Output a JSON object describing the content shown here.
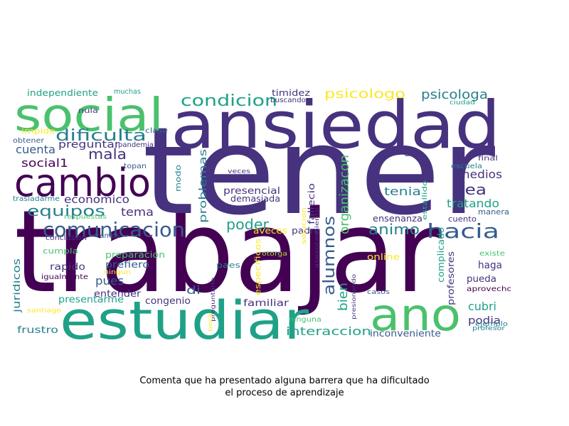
{
  "caption": {
    "line1": "Comenta que ha presentado alguna barrera que ha dificultado",
    "line2": "el proceso de aprendizaje"
  },
  "palette": {
    "dark_purple": "#440154",
    "indigo": "#46327e",
    "blue": "#365c8d",
    "teal_blue": "#277f8e",
    "teal": "#1fa187",
    "green": "#4ac16d",
    "lime": "#a0da39",
    "yellow": "#fde725"
  },
  "words": [
    {
      "text": "trabajar",
      "color": "dark_purple"
    },
    {
      "text": "tener",
      "color": "indigo"
    },
    {
      "text": "ansiedad",
      "color": "indigo"
    },
    {
      "text": "estudiar",
      "color": "teal"
    },
    {
      "text": "social",
      "color": "green"
    },
    {
      "text": "cambio",
      "color": "dark_purple"
    },
    {
      "text": "ano",
      "color": "green"
    },
    {
      "text": "comunicacion",
      "color": "blue"
    },
    {
      "text": "hacia",
      "color": "blue"
    },
    {
      "text": "condicion",
      "color": "teal"
    },
    {
      "text": "dificulta",
      "color": "teal_blue"
    },
    {
      "text": "alumnos",
      "color": "blue"
    },
    {
      "text": "equipos",
      "color": "teal_blue"
    },
    {
      "text": "mala",
      "color": "indigo"
    },
    {
      "text": "psicologo",
      "color": "yellow"
    },
    {
      "text": "psicologa",
      "color": "teal_blue"
    },
    {
      "text": "poder",
      "color": "teal"
    },
    {
      "text": "animo",
      "color": "teal_blue"
    },
    {
      "text": "tea",
      "color": "indigo"
    },
    {
      "text": "medios",
      "color": "indigo"
    },
    {
      "text": "social1",
      "color": "dark_purple"
    },
    {
      "text": "tratando",
      "color": "teal"
    },
    {
      "text": "cuenta",
      "color": "blue"
    },
    {
      "text": "tema",
      "color": "indigo"
    },
    {
      "text": "tenia",
      "color": "teal_blue"
    },
    {
      "text": "economico",
      "color": "indigo"
    },
    {
      "text": "bien",
      "color": "teal"
    },
    {
      "text": "organizacon",
      "color": "green"
    },
    {
      "text": "problemas",
      "color": "teal_blue"
    },
    {
      "text": "interaccion",
      "color": "teal"
    },
    {
      "text": "preguntar",
      "color": "indigo"
    },
    {
      "text": "presencial",
      "color": "indigo"
    },
    {
      "text": "demasiada",
      "color": "indigo"
    },
    {
      "text": "podia",
      "color": "indigo"
    },
    {
      "text": "cubri",
      "color": "teal"
    },
    {
      "text": "pues",
      "color": "blue"
    },
    {
      "text": "juridicos",
      "color": "teal_blue"
    },
    {
      "text": "haga",
      "color": "indigo"
    },
    {
      "text": "inconveniente",
      "color": "blue"
    },
    {
      "text": "ensenanza",
      "color": "indigo"
    },
    {
      "text": "independiente",
      "color": "teal"
    },
    {
      "text": "timidez",
      "color": "indigo"
    },
    {
      "text": "fallecio",
      "color": "indigo"
    },
    {
      "text": "congenio",
      "color": "indigo"
    },
    {
      "text": "presentarme",
      "color": "teal"
    },
    {
      "text": "frustro",
      "color": "teal_blue"
    },
    {
      "text": "familiar",
      "color": "indigo"
    },
    {
      "text": "entender",
      "color": "indigo"
    },
    {
      "text": "prefiero",
      "color": "blue"
    },
    {
      "text": "rapido",
      "color": "indigo"
    },
    {
      "text": "preparacion",
      "color": "green"
    },
    {
      "text": "complicado",
      "color": "teal"
    },
    {
      "text": "profesores",
      "color": "indigo"
    },
    {
      "text": "pueda",
      "color": "indigo"
    },
    {
      "text": "aprovecho",
      "color": "dark_purple"
    },
    {
      "text": "padre",
      "color": "indigo"
    },
    {
      "text": "aveces",
      "color": "yellow"
    },
    {
      "text": "modo",
      "color": "teal_blue"
    },
    {
      "text": "dar",
      "color": "indigo"
    },
    {
      "text": "cuento",
      "color": "indigo"
    },
    {
      "text": "manera",
      "color": "blue"
    },
    {
      "text": "di",
      "color": "blue"
    },
    {
      "text": "paes",
      "color": "teal_blue"
    },
    {
      "text": "online",
      "color": "yellow"
    },
    {
      "text": "especificos",
      "color": "yellow"
    },
    {
      "text": "cumpla",
      "color": "green"
    },
    {
      "text": "igualmente",
      "color": "dark_purple"
    },
    {
      "text": "impide",
      "color": "yellow"
    },
    {
      "text": "obtener",
      "color": "blue"
    },
    {
      "text": "nula",
      "color": "indigo"
    },
    {
      "text": "muchas",
      "color": "teal"
    },
    {
      "text": "clase",
      "color": "blue"
    },
    {
      "text": "pandemia",
      "color": "indigo"
    },
    {
      "text": "topan",
      "color": "blue"
    },
    {
      "text": "trasladarme",
      "color": "teal_blue"
    },
    {
      "text": "respuestas",
      "color": "green"
    },
    {
      "text": "conclusion",
      "color": "indigo"
    },
    {
      "text": "ramos",
      "color": "blue"
    },
    {
      "text": "buscando",
      "color": "indigo"
    },
    {
      "text": "ciudad",
      "color": "teal"
    },
    {
      "text": "final",
      "color": "indigo"
    },
    {
      "text": "escuela",
      "color": "teal_blue"
    },
    {
      "text": "estallido",
      "color": "teal"
    },
    {
      "text": "veces",
      "color": "indigo"
    },
    {
      "text": "solucion",
      "color": "yellow"
    },
    {
      "text": "asesoramiento",
      "color": "indigo"
    },
    {
      "text": "otorga",
      "color": "lime"
    },
    {
      "text": "ningun",
      "color": "yellow"
    },
    {
      "text": "santiago",
      "color": "yellow"
    },
    {
      "text": "preguntarle",
      "color": "indigo"
    },
    {
      "text": "poca",
      "color": "yellow"
    },
    {
      "text": "ninguna",
      "color": "green"
    },
    {
      "text": "presionando",
      "color": "indigo"
    },
    {
      "text": "casos",
      "color": "blue"
    },
    {
      "text": "existe",
      "color": "green"
    },
    {
      "text": "ejemplo",
      "color": "teal_blue"
    },
    {
      "text": "profesor",
      "color": "teal_blue"
    }
  ]
}
